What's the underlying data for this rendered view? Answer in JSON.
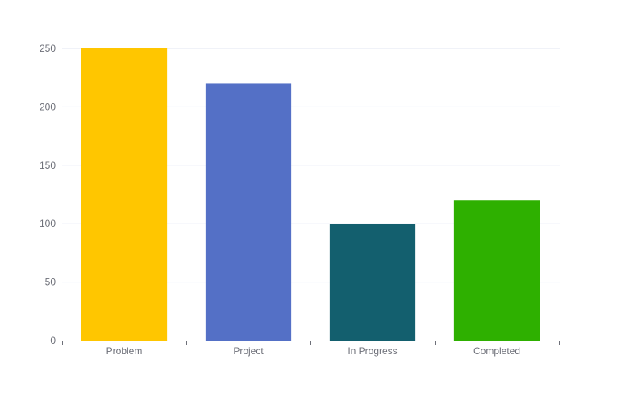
{
  "chart_data": {
    "type": "bar",
    "categories": [
      "Problem",
      "Project",
      "In Progress",
      "Completed"
    ],
    "values": [
      250,
      220,
      100,
      120
    ],
    "colors": [
      "#ffc600",
      "#5470c6",
      "#135f6e",
      "#2eb000"
    ],
    "title": "",
    "xlabel": "",
    "ylabel": "",
    "ylim": [
      0,
      250
    ],
    "yticks": [
      0,
      50,
      100,
      150,
      200,
      250
    ],
    "grid": true,
    "legend": "none",
    "gridline_color": "#e0e6f1",
    "axis_color": "#6e7079"
  }
}
